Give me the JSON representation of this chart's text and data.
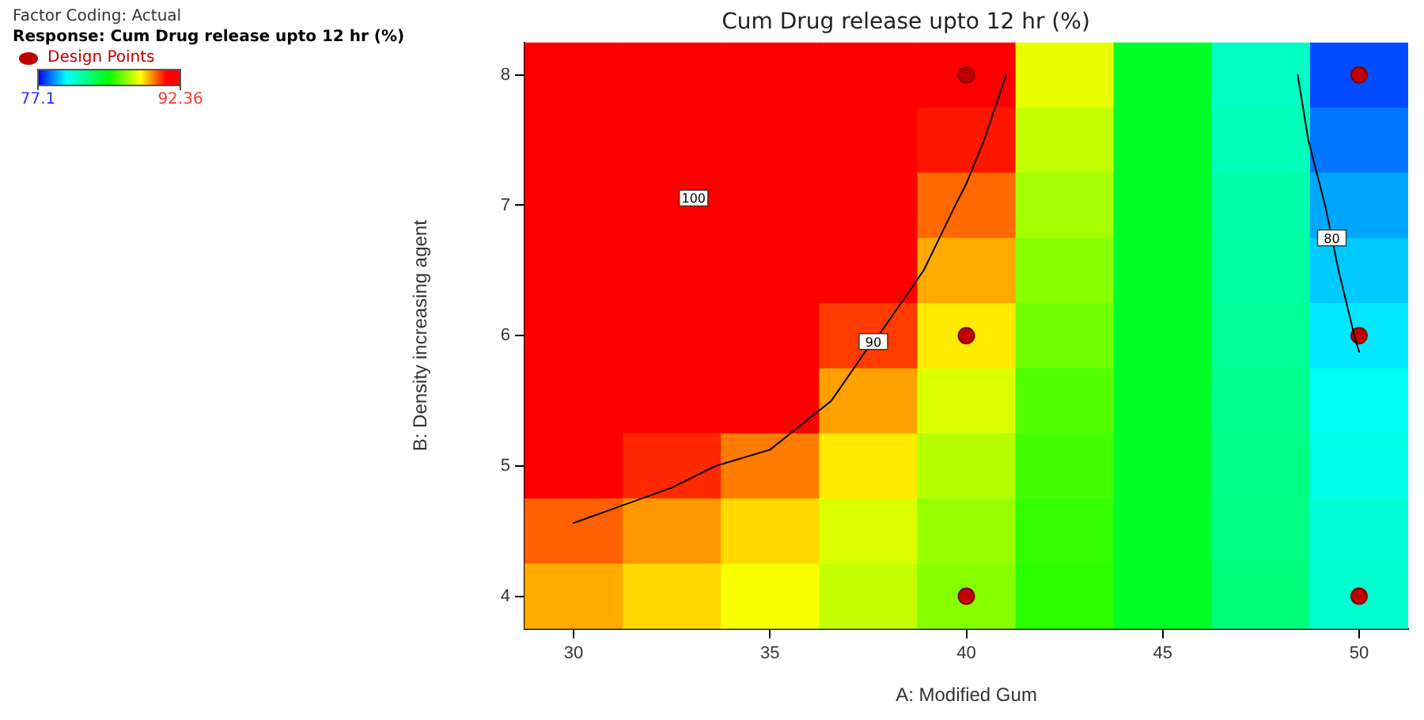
{
  "chart_data": {
    "type": "heatmap",
    "title": "Cum Drug release upto 12 hr (%)",
    "xlabel": "A: Modified Gum",
    "ylabel": "B: Density increasing agent",
    "annotations": [
      "Factor Coding: Actual",
      "Response:  Cum Drug release upto 12 hr (%)",
      "100",
      "90",
      "80"
    ],
    "categories": [
      "30",
      null,
      "35",
      null,
      "40",
      null,
      "45",
      null,
      "50"
    ],
    "y_categories": [
      "8",
      null,
      "7",
      null,
      "6",
      null,
      "5",
      null,
      "4"
    ],
    "cells": [
      [
        92.36,
        92.36,
        92.36,
        92.36,
        91.5,
        87.8,
        84,
        81.2,
        78
      ],
      [
        92.36,
        92.36,
        92.36,
        92.36,
        90.6,
        87.3,
        84,
        81.4,
        78.5
      ],
      [
        92.36,
        92.36,
        92.36,
        92.36,
        89.7,
        86.9,
        84,
        81.7,
        79.1
      ],
      [
        92.36,
        92.36,
        92.36,
        91.3,
        89.0,
        86.5,
        84,
        81.9,
        79.5
      ],
      [
        92.36,
        92.36,
        92.2,
        90.2,
        88.3,
        86.2,
        84,
        82.0,
        79.9
      ],
      [
        92.36,
        92.1,
        91.5,
        89.1,
        87.6,
        85.8,
        84,
        82.2,
        80.3
      ],
      [
        91.4,
        90.4,
        89.5,
        88.3,
        87.1,
        85.6,
        84,
        82.3,
        80.6
      ],
      [
        89.8,
        89.2,
        88.5,
        87.6,
        86.7,
        85.4,
        84,
        82.4,
        80.9
      ],
      [
        89.0,
        88.5,
        88.0,
        87.3,
        86.5,
        85.3,
        84,
        82.5,
        81.0
      ]
    ],
    "clim": [
      77.1,
      92.36
    ],
    "series": [
      {
        "type": "scatter",
        "name": "Design Points",
        "color": "#c00000",
        "x": [
          "40",
          "50",
          "40",
          "50",
          "40",
          "50"
        ],
        "values": [
          0,
          0,
          4,
          4,
          8,
          8
        ]
      }
    ],
    "cticks": [
      77.1,
      92.36
    ],
    "grid": false,
    "legend": "top left",
    "marker": "circle"
  }
}
